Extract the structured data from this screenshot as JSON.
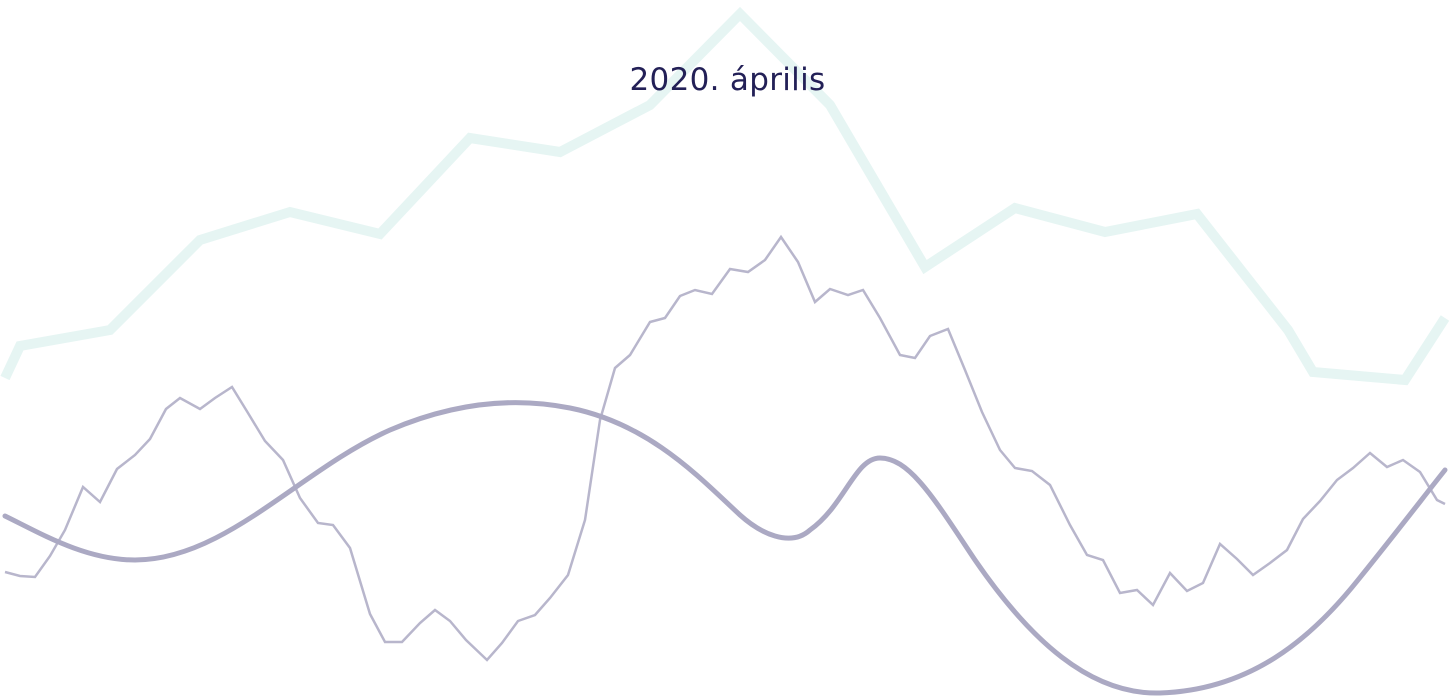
{
  "title": "2020. április",
  "decor": {
    "colors": {
      "background": "#ffffff",
      "title": "#232057",
      "wide_line": "#e6f5f3",
      "thin_line": "#b8b6cc",
      "smooth_line": "#aba9c3"
    }
  }
}
